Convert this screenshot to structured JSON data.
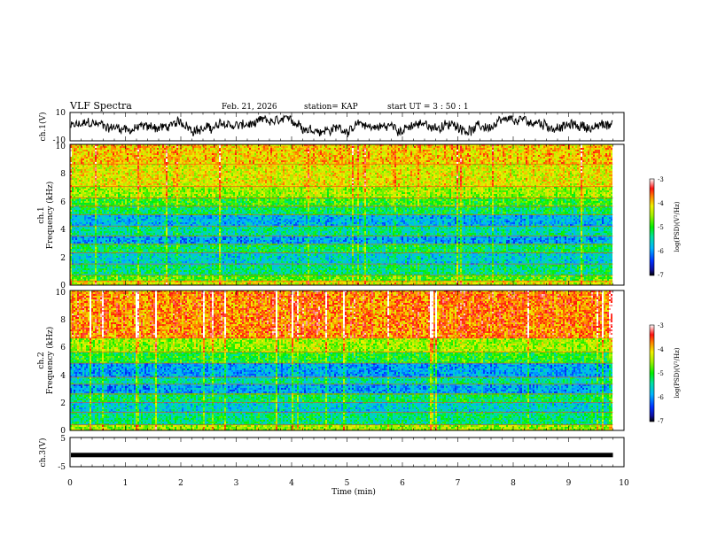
{
  "header": {
    "title": "VLF Spectra",
    "date": "Feb. 21, 2026",
    "station": "station= KAP",
    "start": "start  UT =   3  : 50 : 1"
  },
  "chart_data": {
    "type": "heatmap",
    "title": "VLF Spectra",
    "xlabel": "Time  (min)",
    "xlim": [
      0,
      10
    ],
    "x_ticks": [
      "0",
      "1",
      "2",
      "3",
      "4",
      "5",
      "6",
      "7",
      "8",
      "9",
      "10"
    ],
    "data_end_min": 9.8,
    "panels": [
      {
        "kind": "line",
        "ylabel": "ch.1(V)",
        "ylim": [
          -10,
          10
        ],
        "y_ticks": [
          "10",
          "-10"
        ],
        "summary": "noisy waveform oscillating roughly between -7 and 7 V"
      },
      {
        "kind": "spectrogram",
        "ylabel_top": "ch.1",
        "ylabel": "Frequency  (kHz)",
        "ylim": [
          0,
          10
        ],
        "y_ticks": [
          "0",
          "2",
          "4",
          "6",
          "8",
          "10"
        ],
        "colorbar": {
          "label": "log(PSD)(V²/Hz)",
          "range": [
            -7,
            -3
          ],
          "ticks": [
            "-3",
            "-4",
            "-5",
            "-6",
            "-7"
          ]
        },
        "bands": [
          {
            "from_khz": 0,
            "to_khz": 0.3,
            "level": -4.2
          },
          {
            "from_khz": 0.3,
            "to_khz": 0.7,
            "level": -4.8
          },
          {
            "from_khz": 0.7,
            "to_khz": 1.5,
            "level": -5.3
          },
          {
            "from_khz": 1.5,
            "to_khz": 2.3,
            "level": -5.6
          },
          {
            "from_khz": 2.3,
            "to_khz": 2.9,
            "level": -5.2
          },
          {
            "from_khz": 2.9,
            "to_khz": 3.5,
            "level": -5.9
          },
          {
            "from_khz": 3.5,
            "to_khz": 4.2,
            "level": -5.4
          },
          {
            "from_khz": 4.2,
            "to_khz": 5.0,
            "level": -5.8
          },
          {
            "from_khz": 5.0,
            "to_khz": 5.6,
            "level": -5.2
          },
          {
            "from_khz": 5.6,
            "to_khz": 6.2,
            "level": -4.9
          },
          {
            "from_khz": 6.2,
            "to_khz": 7.0,
            "level": -4.5
          },
          {
            "from_khz": 7.0,
            "to_khz": 8.6,
            "level": -4.2
          },
          {
            "from_khz": 8.6,
            "to_khz": 10.0,
            "level": -4.0
          }
        ]
      },
      {
        "kind": "spectrogram",
        "ylabel_top": "ch.2",
        "ylabel": "Frequency  (kHz)",
        "ylim": [
          0,
          10
        ],
        "y_ticks": [
          "0",
          "2",
          "4",
          "6",
          "8",
          "10"
        ],
        "colorbar": {
          "label": "log(PSD)(V²/Hz)",
          "range": [
            -7,
            -3
          ],
          "ticks": [
            "-3",
            "-4",
            "-5",
            "-6",
            "-7"
          ]
        },
        "bands": [
          {
            "from_khz": 0,
            "to_khz": 0.4,
            "level": -4.5
          },
          {
            "from_khz": 0.4,
            "to_khz": 1.3,
            "level": -5.3
          },
          {
            "from_khz": 1.3,
            "to_khz": 2.0,
            "level": -5.6
          },
          {
            "from_khz": 2.0,
            "to_khz": 2.6,
            "level": -5.2
          },
          {
            "from_khz": 2.6,
            "to_khz": 3.3,
            "level": -5.9
          },
          {
            "from_khz": 3.3,
            "to_khz": 3.8,
            "level": -5.4
          },
          {
            "from_khz": 3.8,
            "to_khz": 4.8,
            "level": -5.9
          },
          {
            "from_khz": 4.8,
            "to_khz": 5.6,
            "level": -5.0
          },
          {
            "from_khz": 5.6,
            "to_khz": 6.6,
            "level": -4.5
          },
          {
            "from_khz": 6.6,
            "to_khz": 10.0,
            "level": -3.7
          }
        ]
      },
      {
        "kind": "line",
        "ylabel": "ch.3(V)",
        "ylim": [
          -5,
          5
        ],
        "y_ticks": [
          "5",
          "-5"
        ],
        "level": -1,
        "summary": "flat thick trace near -1 V"
      }
    ]
  }
}
